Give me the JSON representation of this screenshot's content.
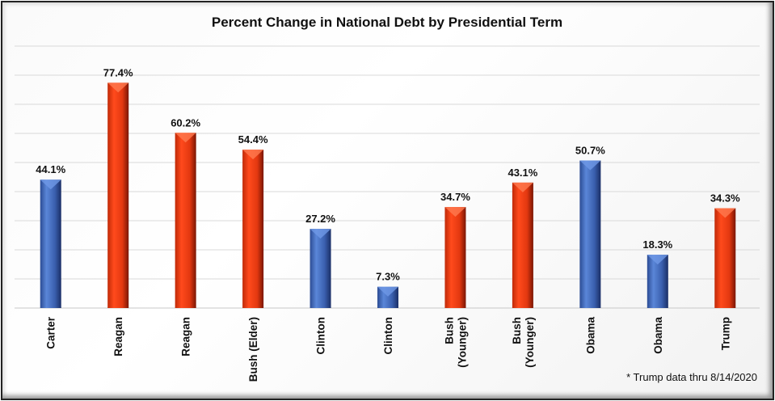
{
  "chart_data": {
    "type": "bar",
    "title": "Percent Change in National Debt by Presidential Term",
    "categories": [
      [
        "Carter"
      ],
      [
        "Reagan"
      ],
      [
        "Reagan"
      ],
      [
        "Bush (Elder)"
      ],
      [
        "Clinton"
      ],
      [
        "Clinton"
      ],
      [
        "Bush",
        "(Younger)"
      ],
      [
        "Bush",
        "(Younger)"
      ],
      [
        "Obama"
      ],
      [
        "Obama"
      ],
      [
        "Trump"
      ]
    ],
    "values": [
      44.1,
      77.4,
      60.2,
      54.4,
      27.2,
      7.3,
      34.7,
      43.1,
      50.7,
      18.3,
      34.3
    ],
    "data_labels": [
      "44.1%",
      "77.4%",
      "60.2%",
      "54.4%",
      "27.2%",
      "7.3%",
      "34.7%",
      "43.1%",
      "50.7%",
      "18.3%",
      "34.3%"
    ],
    "party": [
      "D",
      "R",
      "R",
      "R",
      "D",
      "D",
      "R",
      "R",
      "D",
      "D",
      "R"
    ],
    "colors": {
      "D": "#3f66b8",
      "R": "#ee3a12"
    },
    "ylim": [
      0,
      90
    ],
    "ytick_step": 10,
    "y_tick_labels_shown": false,
    "grid": true,
    "legend": "none",
    "footnote": "* Trump data thru 8/14/2020"
  }
}
